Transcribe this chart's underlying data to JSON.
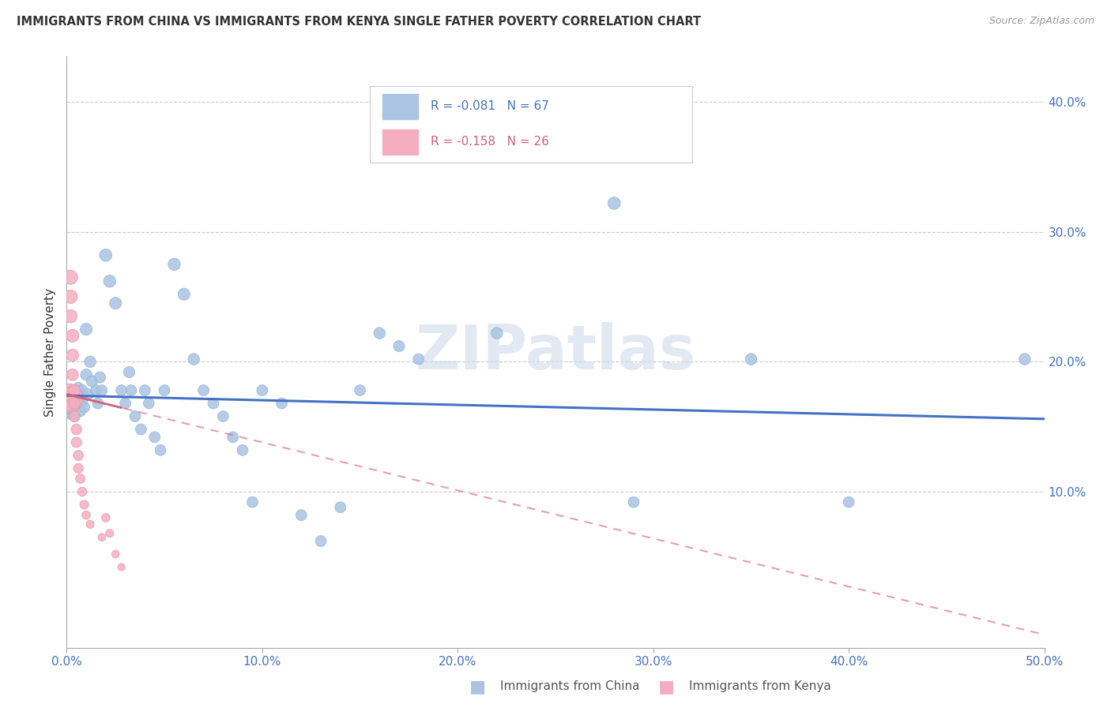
{
  "title": "IMMIGRANTS FROM CHINA VS IMMIGRANTS FROM KENYA SINGLE FATHER POVERTY CORRELATION CHART",
  "source": "Source: ZipAtlas.com",
  "ylabel": "Single Father Poverty",
  "xlim": [
    0.0,
    0.5
  ],
  "ylim": [
    -0.02,
    0.435
  ],
  "china_color": "#aac4e2",
  "kenya_color": "#f5aec0",
  "china_line_color": "#4472c4",
  "kenya_line_color": "#d4607a",
  "watermark": "ZIPatlas",
  "china_R": -0.081,
  "china_N": 67,
  "kenya_R": -0.158,
  "kenya_N": 26,
  "china_points": [
    [
      0.001,
      0.165
    ],
    [
      0.001,
      0.17
    ],
    [
      0.002,
      0.175
    ],
    [
      0.002,
      0.168
    ],
    [
      0.002,
      0.16
    ],
    [
      0.003,
      0.178
    ],
    [
      0.003,
      0.162
    ],
    [
      0.003,
      0.172
    ],
    [
      0.004,
      0.17
    ],
    [
      0.004,
      0.158
    ],
    [
      0.004,
      0.175
    ],
    [
      0.005,
      0.175
    ],
    [
      0.005,
      0.168
    ],
    [
      0.006,
      0.172
    ],
    [
      0.006,
      0.18
    ],
    [
      0.007,
      0.175
    ],
    [
      0.007,
      0.162
    ],
    [
      0.008,
      0.178
    ],
    [
      0.008,
      0.17
    ],
    [
      0.009,
      0.165
    ],
    [
      0.01,
      0.225
    ],
    [
      0.01,
      0.19
    ],
    [
      0.011,
      0.175
    ],
    [
      0.012,
      0.2
    ],
    [
      0.013,
      0.185
    ],
    [
      0.015,
      0.178
    ],
    [
      0.016,
      0.168
    ],
    [
      0.017,
      0.188
    ],
    [
      0.018,
      0.178
    ],
    [
      0.02,
      0.282
    ],
    [
      0.022,
      0.262
    ],
    [
      0.025,
      0.245
    ],
    [
      0.028,
      0.178
    ],
    [
      0.03,
      0.168
    ],
    [
      0.032,
      0.192
    ],
    [
      0.033,
      0.178
    ],
    [
      0.035,
      0.158
    ],
    [
      0.038,
      0.148
    ],
    [
      0.04,
      0.178
    ],
    [
      0.042,
      0.168
    ],
    [
      0.045,
      0.142
    ],
    [
      0.048,
      0.132
    ],
    [
      0.05,
      0.178
    ],
    [
      0.055,
      0.275
    ],
    [
      0.06,
      0.252
    ],
    [
      0.065,
      0.202
    ],
    [
      0.07,
      0.178
    ],
    [
      0.075,
      0.168
    ],
    [
      0.08,
      0.158
    ],
    [
      0.085,
      0.142
    ],
    [
      0.09,
      0.132
    ],
    [
      0.095,
      0.092
    ],
    [
      0.1,
      0.178
    ],
    [
      0.11,
      0.168
    ],
    [
      0.12,
      0.082
    ],
    [
      0.13,
      0.062
    ],
    [
      0.14,
      0.088
    ],
    [
      0.15,
      0.178
    ],
    [
      0.16,
      0.222
    ],
    [
      0.17,
      0.212
    ],
    [
      0.18,
      0.202
    ],
    [
      0.22,
      0.222
    ],
    [
      0.28,
      0.322
    ],
    [
      0.29,
      0.092
    ],
    [
      0.35,
      0.202
    ],
    [
      0.4,
      0.092
    ],
    [
      0.49,
      0.202
    ]
  ],
  "china_sizes": [
    120,
    110,
    100,
    100,
    100,
    110,
    100,
    100,
    100,
    100,
    100,
    100,
    100,
    100,
    100,
    100,
    100,
    100,
    100,
    100,
    120,
    110,
    100,
    110,
    105,
    100,
    100,
    105,
    100,
    130,
    125,
    120,
    100,
    100,
    105,
    100,
    100,
    100,
    100,
    100,
    100,
    100,
    100,
    125,
    120,
    110,
    100,
    100,
    100,
    100,
    100,
    100,
    100,
    100,
    100,
    100,
    100,
    100,
    110,
    105,
    100,
    110,
    130,
    100,
    110,
    100,
    110
  ],
  "kenya_points": [
    [
      0.001,
      0.172
    ],
    [
      0.001,
      0.168
    ],
    [
      0.001,
      0.175
    ],
    [
      0.002,
      0.265
    ],
    [
      0.002,
      0.25
    ],
    [
      0.002,
      0.235
    ],
    [
      0.003,
      0.22
    ],
    [
      0.003,
      0.205
    ],
    [
      0.003,
      0.19
    ],
    [
      0.004,
      0.178
    ],
    [
      0.004,
      0.168
    ],
    [
      0.004,
      0.158
    ],
    [
      0.005,
      0.148
    ],
    [
      0.005,
      0.138
    ],
    [
      0.006,
      0.128
    ],
    [
      0.006,
      0.118
    ],
    [
      0.007,
      0.11
    ],
    [
      0.008,
      0.1
    ],
    [
      0.009,
      0.09
    ],
    [
      0.01,
      0.082
    ],
    [
      0.012,
      0.075
    ],
    [
      0.018,
      0.065
    ],
    [
      0.02,
      0.08
    ],
    [
      0.022,
      0.068
    ],
    [
      0.025,
      0.052
    ],
    [
      0.028,
      0.042
    ]
  ],
  "kenya_sizes": [
    700,
    180,
    160,
    170,
    155,
    145,
    135,
    125,
    115,
    110,
    105,
    100,
    95,
    90,
    85,
    80,
    75,
    70,
    65,
    60,
    55,
    50,
    60,
    55,
    50,
    45
  ],
  "china_line_x": [
    0.0,
    0.5
  ],
  "china_line_y": [
    0.174,
    0.156
  ],
  "kenya_line_x": [
    0.0,
    0.5
  ],
  "kenya_line_y": [
    0.175,
    -0.01
  ]
}
